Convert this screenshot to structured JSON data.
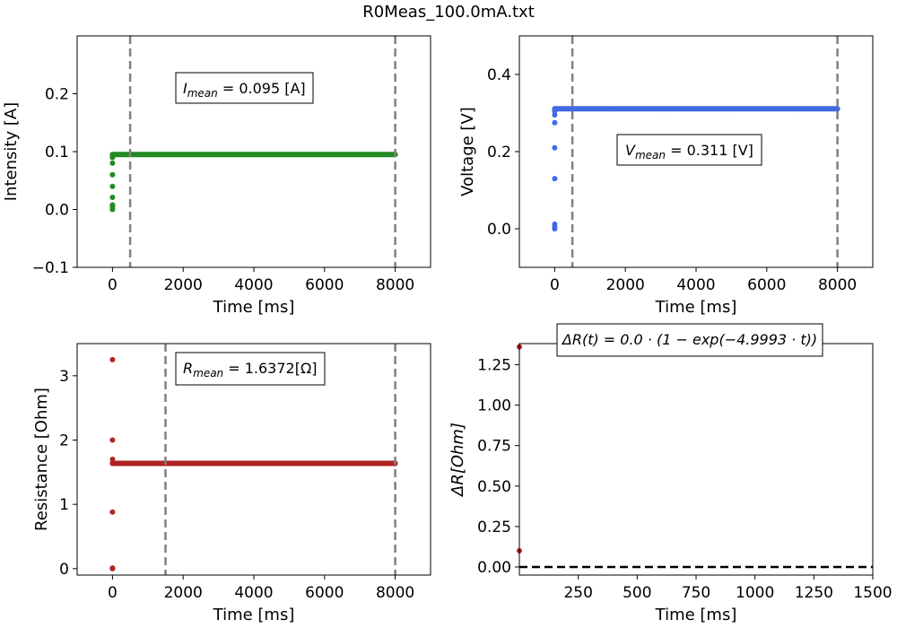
{
  "figure": {
    "title": "R0Meas_100.0mA.txt"
  },
  "chart_data": [
    {
      "id": "intensity",
      "type": "scatter",
      "xlabel": "Time [ms]",
      "ylabel": "Intensity [A]",
      "xlim": [
        -1000,
        9000
      ],
      "ylim": [
        -0.1,
        0.3
      ],
      "xticks": [
        0,
        2000,
        4000,
        6000,
        8000
      ],
      "yticks": [
        -0.1,
        0.0,
        0.1,
        0.2
      ],
      "ytick_labels": [
        "−0.1",
        "0.0",
        "0.1",
        "0.2"
      ],
      "color": "#228B22",
      "vlines": [
        500,
        8000
      ],
      "annotation": {
        "prefix": "I",
        "subscript": "mean",
        "text": " = 0.095 [A]"
      },
      "initial_points": [
        [
          0,
          0.0
        ],
        [
          0,
          0.005
        ],
        [
          0,
          0.008
        ],
        [
          0,
          0.021
        ],
        [
          0,
          0.04
        ],
        [
          0,
          0.06
        ],
        [
          0,
          0.08
        ],
        [
          0,
          0.09
        ],
        [
          0,
          0.092
        ]
      ],
      "steady": {
        "x_start": 0,
        "x_end": 8000,
        "y": 0.095
      }
    },
    {
      "id": "voltage",
      "type": "scatter",
      "xlabel": "Time [ms]",
      "ylabel": "Voltage [V]",
      "xlim": [
        -1000,
        9000
      ],
      "ylim": [
        -0.1,
        0.5
      ],
      "xticks": [
        0,
        2000,
        4000,
        6000,
        8000
      ],
      "yticks": [
        0.0,
        0.2,
        0.4
      ],
      "ytick_labels": [
        "0.0",
        "0.2",
        "0.4"
      ],
      "color": "#4169E1",
      "vlines": [
        500,
        8000
      ],
      "annotation": {
        "prefix": "V",
        "subscript": "mean",
        "text": " = 0.311 [V]"
      },
      "initial_points": [
        [
          0,
          0.0
        ],
        [
          0,
          0.005
        ],
        [
          0,
          0.012
        ],
        [
          0,
          0.13
        ],
        [
          0,
          0.21
        ],
        [
          0,
          0.275
        ],
        [
          0,
          0.295
        ],
        [
          0,
          0.305
        ]
      ],
      "steady": {
        "x_start": 0,
        "x_end": 8000,
        "y": 0.311
      }
    },
    {
      "id": "resistance",
      "type": "scatter",
      "xlabel": "Time [ms]",
      "ylabel": "Resistance [Ohm]",
      "xlim": [
        -1000,
        9000
      ],
      "ylim": [
        -0.1,
        3.5
      ],
      "xticks": [
        0,
        2000,
        4000,
        6000,
        8000
      ],
      "yticks": [
        0,
        1,
        2,
        3
      ],
      "ytick_labels": [
        "0",
        "1",
        "2",
        "3"
      ],
      "color": "#B22222",
      "vlines": [
        1500,
        8000
      ],
      "annotation": {
        "prefix": "R",
        "subscript": "mean",
        "text": " = 1.6372[Ω]"
      },
      "initial_points": [
        [
          0,
          3.25
        ],
        [
          0,
          2.0
        ],
        [
          0,
          0.88
        ],
        [
          0,
          0.0
        ],
        [
          0,
          0.01
        ],
        [
          0,
          1.7
        ]
      ],
      "steady": {
        "x_start": 0,
        "x_end": 8000,
        "y": 1.6372
      }
    },
    {
      "id": "delta-r",
      "type": "scatter",
      "xlabel": "Time [ms]",
      "ylabel": "ΔR[Ohm]",
      "xlim": [
        0,
        1500
      ],
      "ylim": [
        -0.05,
        1.38
      ],
      "xticks": [
        250,
        500,
        750,
        1000,
        1250,
        1500
      ],
      "yticks": [
        0.0,
        0.25,
        0.5,
        0.75,
        1.0,
        1.25
      ],
      "ytick_labels": [
        "0.00",
        "0.25",
        "0.50",
        "0.75",
        "1.00",
        "1.25"
      ],
      "color": "#B22222",
      "hline": 0.0,
      "annotation": {
        "text": "ΔR(t) = 0.0 · (1 − exp(−4.9993 · t))"
      },
      "points": [
        [
          0,
          1.36
        ],
        [
          0,
          0.1
        ]
      ]
    }
  ]
}
